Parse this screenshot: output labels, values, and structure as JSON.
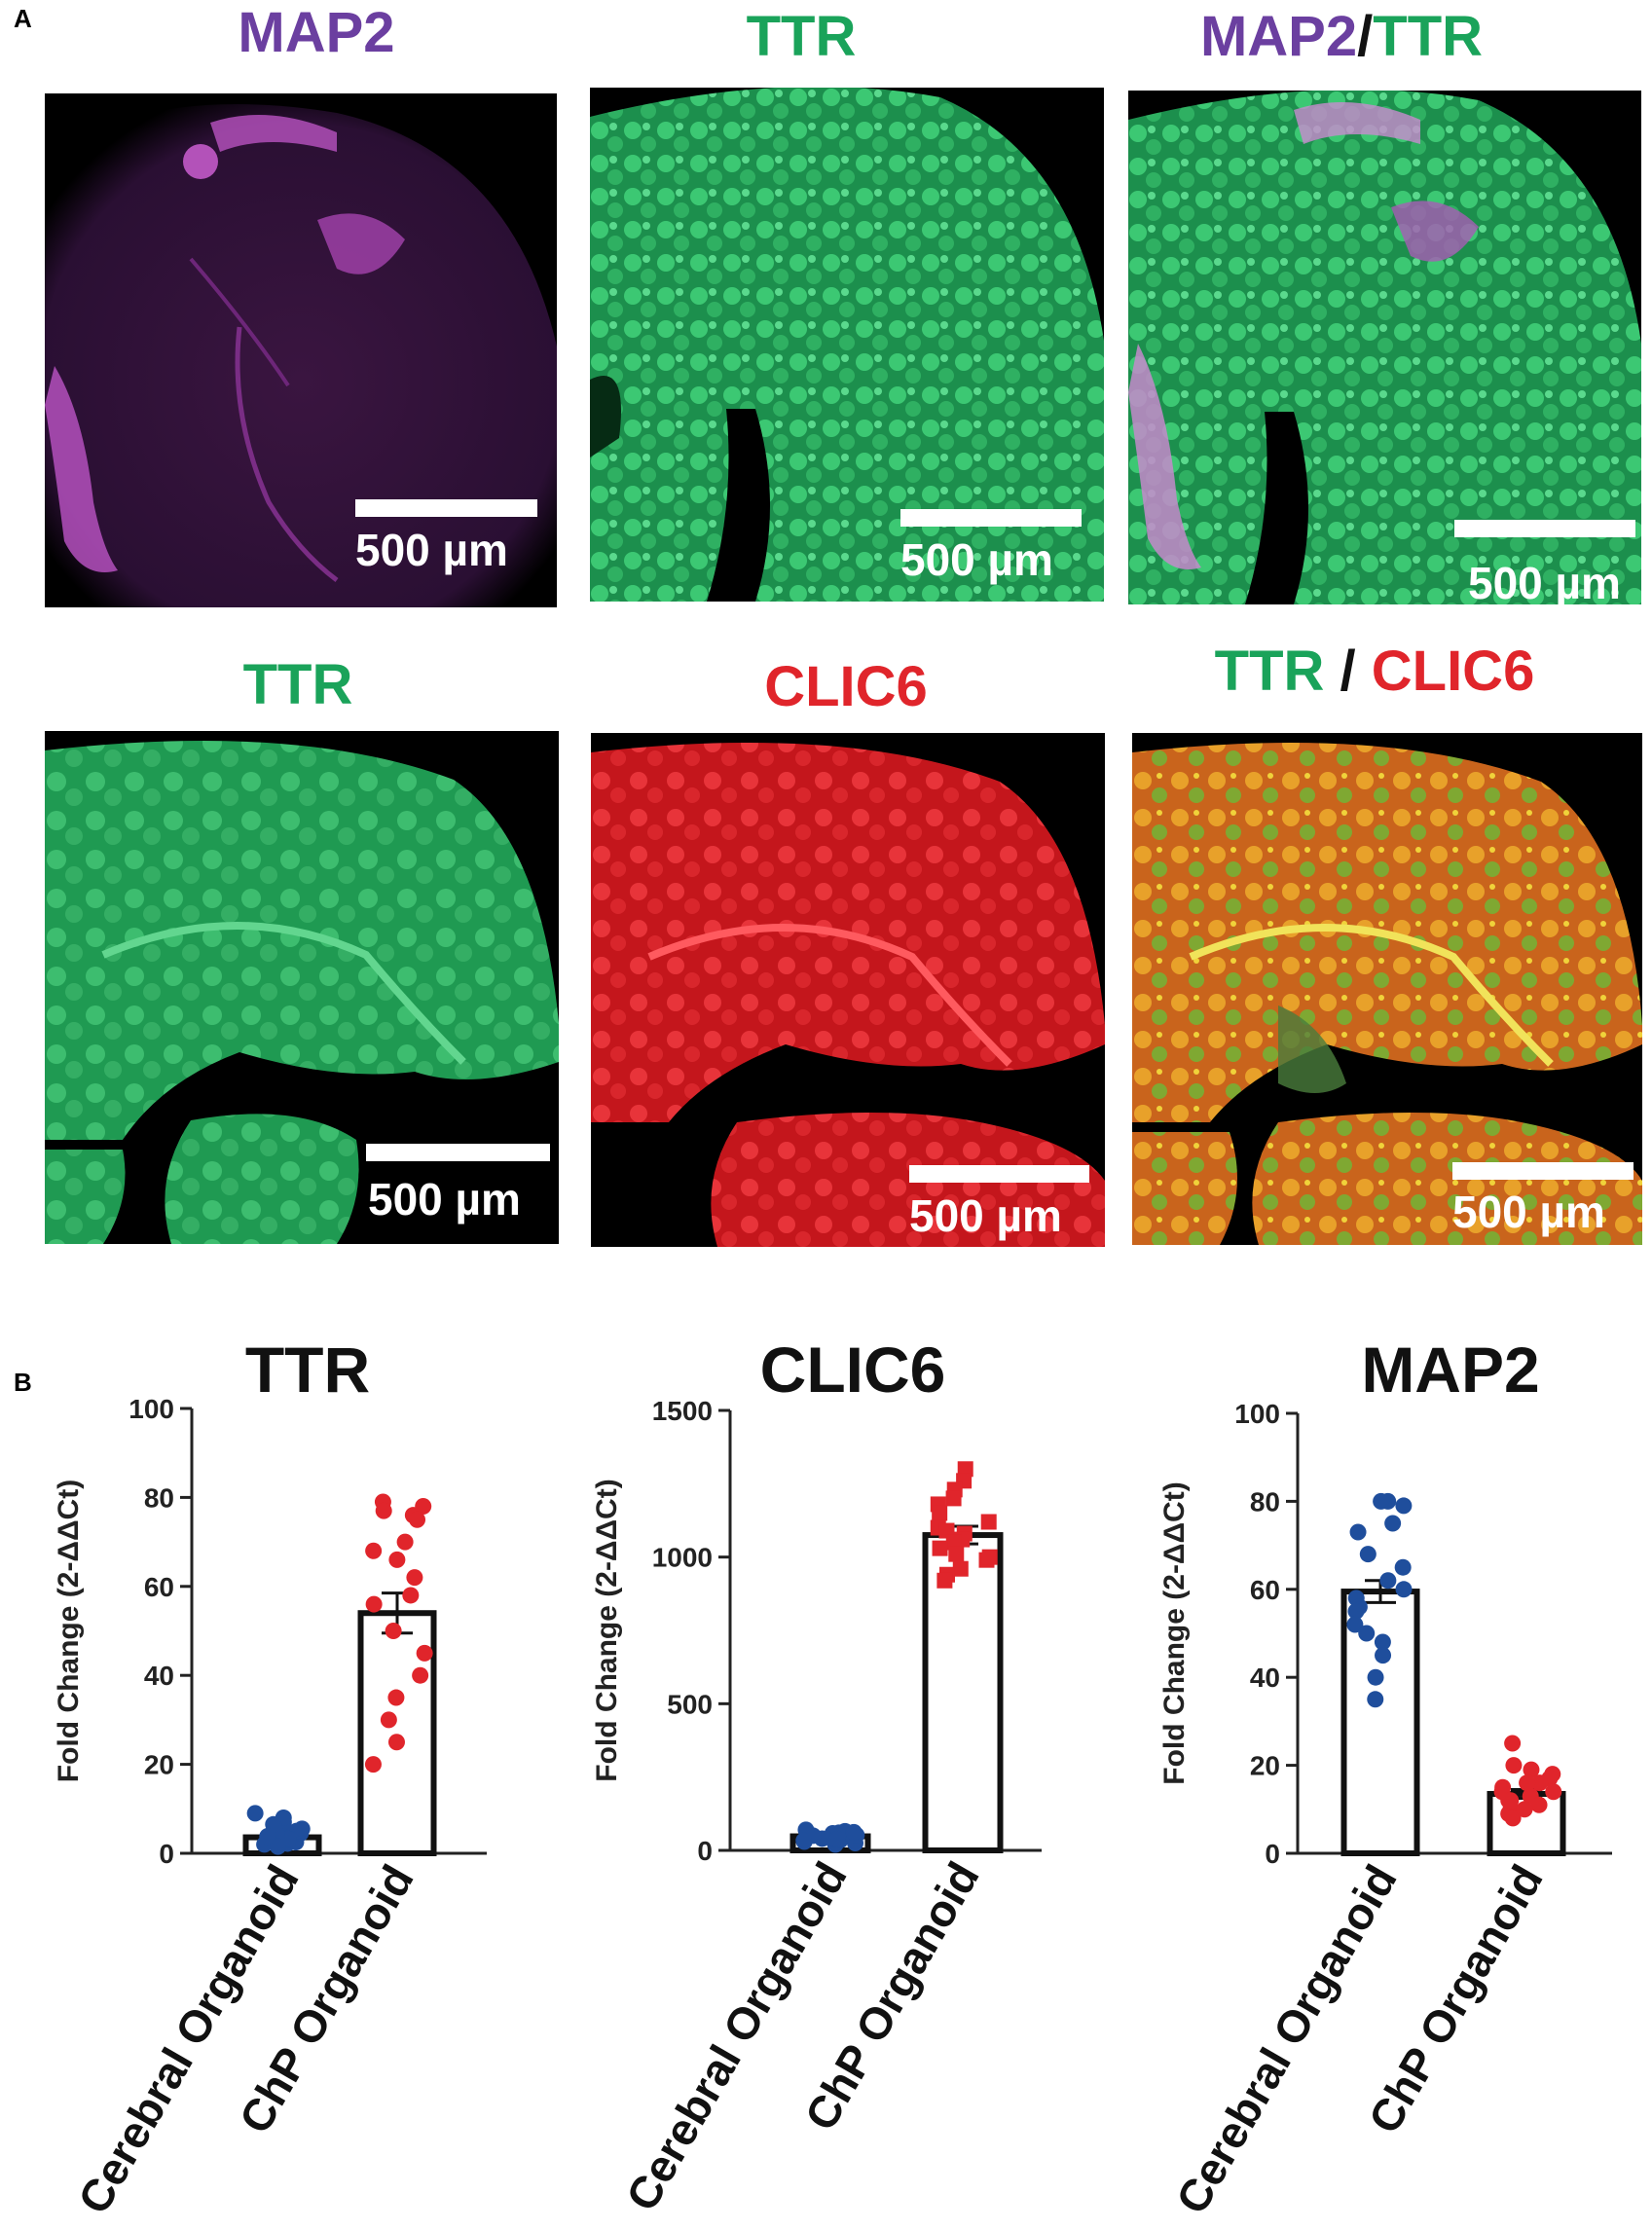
{
  "panels": {
    "a_label": "A",
    "b_label": "B"
  },
  "micrographs": {
    "row1": {
      "t1": "MAP2",
      "t2": "TTR",
      "t3a": "MAP2",
      "t3sep": "/",
      "t3b": "TTR"
    },
    "row2": {
      "t1": "TTR",
      "t2": "CLIC6",
      "t3a": "TTR",
      "t3sep": " / ",
      "t3b": "CLIC6"
    },
    "scale_label": "500 µm",
    "colors": {
      "map2": "#6b3fa0",
      "ttr": "#1aa35a",
      "clic6": "#e0252b",
      "separator": "#111111"
    }
  },
  "chart_data": [
    {
      "type": "bar",
      "title": "TTR",
      "ylabel": "Fold Change (2-ΔΔCt)",
      "categories": [
        "Cerebral Organoid",
        "ChP Organoid"
      ],
      "values": [
        3.6,
        54
      ],
      "sem": [
        0.6,
        4.5
      ],
      "ylim": [
        0,
        100
      ],
      "yticks": [
        "0",
        "20",
        "40",
        "60",
        "80",
        "100"
      ],
      "point_colors": [
        "#1f4e9c",
        "#e0252b"
      ],
      "marker_shapes": [
        "circle",
        "circle"
      ],
      "points": [
        [
          2.0,
          2.5,
          3.0,
          3.5,
          4.0,
          4.5,
          5.0,
          6.0,
          7.0,
          8.0,
          9.0,
          2.2,
          3.2,
          4.2,
          5.5,
          6.5,
          1.5,
          3.8
        ],
        [
          78,
          79,
          77,
          76,
          75,
          70,
          68,
          66,
          62,
          58,
          56,
          50,
          45,
          40,
          35,
          30,
          25,
          20
        ]
      ]
    },
    {
      "type": "bar",
      "title": "CLIC6",
      "ylabel": "Fold Change (2-ΔΔCt)",
      "categories": [
        "Cerebral Organoid",
        "ChP Organoid"
      ],
      "values": [
        48,
        1075
      ],
      "sem": [
        8,
        30
      ],
      "ylim": [
        0,
        1500
      ],
      "yticks": [
        "0",
        "500",
        "1000",
        "1500"
      ],
      "point_colors": [
        "#1f4e9c",
        "#e0252b"
      ],
      "marker_shapes": [
        "circle",
        "square"
      ],
      "points": [
        [
          20,
          30,
          40,
          45,
          50,
          55,
          60,
          65,
          70,
          35,
          25,
          42,
          58,
          48,
          38,
          52,
          62,
          33
        ],
        [
          1300,
          1260,
          1230,
          1200,
          1180,
          1150,
          1120,
          1100,
          1090,
          1080,
          1060,
          1050,
          1030,
          1010,
          990,
          960,
          940,
          920,
          1000
        ]
      ]
    },
    {
      "type": "bar",
      "title": "MAP2",
      "ylabel": "Fold Change (2-ΔΔCt)",
      "categories": [
        "Cerebral Organoid",
        "ChP Organoid"
      ],
      "values": [
        59.5,
        13.5
      ],
      "sem": [
        2.5,
        1.0
      ],
      "ylim": [
        0,
        100
      ],
      "yticks": [
        "0",
        "20",
        "40",
        "60",
        "80",
        "100"
      ],
      "point_colors": [
        "#1f4e9c",
        "#e0252b"
      ],
      "marker_shapes": [
        "circle",
        "circle"
      ],
      "points": [
        [
          80,
          80,
          79,
          75,
          73,
          68,
          65,
          62,
          60,
          58,
          56,
          55,
          52,
          50,
          48,
          45,
          40,
          35
        ],
        [
          25,
          20,
          19,
          18,
          17,
          16,
          15,
          14,
          13,
          12,
          11,
          10,
          9,
          8,
          14,
          16,
          12,
          10
        ]
      ]
    }
  ]
}
